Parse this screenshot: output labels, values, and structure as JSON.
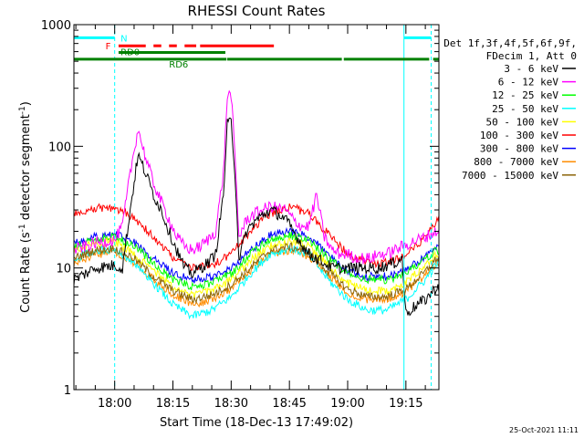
{
  "chart_data": {
    "type": "line",
    "title": "RHESSI Count Rates",
    "xlabel": "Start Time (18-Dec-13 17:49:02)",
    "ylabel_main": "Count Rate (s",
    "ylabel_sup1": "-1",
    "ylabel_mid": " detector segment",
    "ylabel_sup2": "-1",
    "ylabel_end": ")",
    "y_scale": "log",
    "ylim": [
      1,
      1000
    ],
    "xlim_min": [
      -10.5,
      83.5
    ],
    "x_ticks": [
      {
        "label": "18:00",
        "min": 0
      },
      {
        "label": "18:15",
        "min": 15
      },
      {
        "label": "18:30",
        "min": 30
      },
      {
        "label": "18:45",
        "min": 45
      },
      {
        "label": "19:00",
        "min": 60
      },
      {
        "label": "19:15",
        "min": 75
      }
    ],
    "y_ticks": [
      {
        "label": "1",
        "value": 1
      },
      {
        "label": "10",
        "value": 10
      },
      {
        "label": "100",
        "value": 100
      },
      {
        "label": "1000",
        "value": 1000
      }
    ],
    "legend_header": [
      "Det 1f,3f,4f,5f,6f,9f,",
      "FDecim 1, Att 0"
    ],
    "legend_placement": "right",
    "series": [
      {
        "name": "3 - 6 keV",
        "color": "#000000",
        "x": [
          -10.5,
          -5,
          0,
          2,
          4,
          6,
          8,
          10,
          12,
          14,
          16,
          18,
          20,
          22,
          24,
          26,
          28,
          29,
          30,
          31,
          32,
          34,
          36,
          38,
          40,
          42,
          44,
          46,
          48,
          50,
          52,
          54,
          56,
          58,
          60,
          62,
          64,
          66,
          68,
          70,
          72,
          74,
          75,
          76,
          78,
          80,
          83
        ],
        "y": [
          8,
          10,
          10.5,
          10,
          30,
          85,
          60,
          40,
          30,
          20,
          14,
          10,
          9,
          10,
          11,
          13,
          40,
          150,
          160,
          60,
          12,
          20,
          24,
          27,
          30,
          28,
          25,
          20,
          16,
          13,
          12,
          11,
          10,
          10,
          10,
          10,
          10,
          10,
          10,
          10.5,
          11,
          12,
          4.2,
          4.5,
          5,
          5.5,
          7
        ]
      },
      {
        "name": "6 - 12 keV",
        "color": "#ff00ff",
        "x": [
          -10.5,
          -5,
          0,
          2,
          4,
          6,
          8,
          10,
          12,
          14,
          16,
          18,
          20,
          22,
          24,
          26,
          28,
          29,
          30,
          31,
          32,
          34,
          36,
          38,
          40,
          42,
          44,
          46,
          48,
          50,
          52,
          54,
          56,
          58,
          60,
          62,
          64,
          66,
          68,
          70,
          72,
          74,
          76,
          78,
          80,
          83
        ],
        "y": [
          14,
          16,
          17,
          22,
          60,
          140,
          80,
          50,
          35,
          25,
          18,
          15,
          14,
          15,
          17,
          20,
          60,
          260,
          270,
          80,
          18,
          25,
          28,
          30,
          32,
          31,
          30,
          25,
          22,
          22,
          40,
          18,
          14,
          13,
          13,
          12,
          12,
          12,
          13,
          13,
          14,
          15,
          16,
          17,
          18,
          20
        ]
      },
      {
        "name": "12 - 25 keV",
        "color": "#00ff00",
        "x": [
          -10.5,
          -5,
          0,
          5,
          10,
          15,
          20,
          25,
          30,
          35,
          40,
          45,
          50,
          55,
          60,
          65,
          70,
          75,
          80,
          83
        ],
        "y": [
          15,
          17,
          18,
          15,
          11,
          8,
          7,
          7.5,
          9,
          13,
          17,
          18.5,
          17,
          12,
          9,
          8,
          8,
          9,
          12,
          14
        ]
      },
      {
        "name": "25 - 50 keV",
        "color": "#00ffff",
        "x": [
          -10.5,
          -5,
          0,
          5,
          10,
          15,
          20,
          25,
          30,
          35,
          40,
          45,
          50,
          55,
          60,
          65,
          70,
          75,
          80,
          83
        ],
        "y": [
          12,
          14,
          14,
          11,
          7.5,
          5,
          4,
          4.5,
          5.8,
          9,
          13,
          14.5,
          13,
          8,
          5.5,
          4.5,
          4.5,
          5.5,
          8,
          11
        ]
      },
      {
        "name": "50 - 100 keV",
        "color": "#ffff00",
        "x": [
          -10.5,
          -5,
          0,
          5,
          10,
          15,
          20,
          25,
          30,
          35,
          40,
          45,
          50,
          55,
          60,
          65,
          70,
          75,
          80,
          83
        ],
        "y": [
          14,
          16,
          16.5,
          13,
          9.5,
          7,
          6,
          6.5,
          8,
          11.5,
          15,
          16.5,
          15,
          10.5,
          7.5,
          6.5,
          6.5,
          7.5,
          10.5,
          13
        ]
      },
      {
        "name": "100 - 300 keV",
        "color": "#ff0000",
        "x": [
          -10.5,
          -5,
          0,
          5,
          10,
          15,
          20,
          25,
          30,
          35,
          40,
          45,
          50,
          55,
          60,
          65,
          70,
          75,
          80,
          83
        ],
        "y": [
          28,
          31,
          31,
          26,
          18,
          12,
          10,
          10.5,
          13,
          20,
          28,
          32,
          28,
          19,
          13,
          11,
          11,
          13,
          18,
          25
        ]
      },
      {
        "name": "300 - 800 keV",
        "color": "#0000ff",
        "x": [
          -10.5,
          -5,
          0,
          5,
          10,
          15,
          20,
          25,
          30,
          35,
          40,
          45,
          50,
          55,
          60,
          65,
          70,
          75,
          80,
          83
        ],
        "y": [
          16,
          18,
          19,
          16,
          12,
          9,
          8,
          8.5,
          10,
          14,
          18.5,
          20,
          18,
          13,
          9.5,
          8.5,
          8.5,
          9.5,
          12.5,
          15
        ]
      },
      {
        "name": "800 - 7000 keV",
        "color": "#ff8c00",
        "x": [
          -10.5,
          -5,
          0,
          5,
          10,
          15,
          20,
          25,
          30,
          35,
          40,
          45,
          50,
          55,
          60,
          65,
          70,
          75,
          80,
          83
        ],
        "y": [
          11,
          13,
          13.5,
          11,
          8,
          6,
          5,
          5.5,
          6.8,
          9.5,
          13,
          14,
          12.5,
          8.8,
          6.3,
          5.5,
          5.5,
          6.3,
          8.8,
          11
        ]
      },
      {
        "name": "7000 - 15000 keV",
        "color": "#8b6508",
        "x": [
          -10.5,
          -5,
          0,
          5,
          10,
          15,
          20,
          25,
          30,
          35,
          40,
          45,
          50,
          55,
          60,
          65,
          70,
          75,
          80,
          83
        ],
        "y": [
          12,
          14,
          14.5,
          12,
          8.5,
          6.5,
          5.5,
          6,
          7.3,
          10,
          14,
          15,
          13.5,
          9.3,
          6.7,
          5.8,
          5.8,
          6.7,
          9.3,
          12
        ]
      }
    ],
    "vlines": [
      {
        "min": 0,
        "color": "#00ffff",
        "dashed": true
      },
      {
        "min": 74.5,
        "color": "#00ffff",
        "dashed": false
      },
      {
        "min": 81.5,
        "color": "#00ffff",
        "dashed": true
      }
    ],
    "flag_bars": [
      {
        "label": "N",
        "color": "#00ffff",
        "value": 780,
        "spans": [
          [
            -10.5,
            0
          ],
          [
            74.5,
            81.5
          ]
        ]
      },
      {
        "label": "F",
        "color": "#ff0000",
        "value": 670,
        "spans": [
          [
            1,
            8
          ],
          [
            10,
            12
          ],
          [
            14,
            16
          ],
          [
            18,
            21
          ],
          [
            22,
            41
          ]
        ]
      },
      {
        "label": "RD0",
        "color": "#008000",
        "value": 590,
        "spans": [
          [
            1,
            28.5
          ]
        ]
      },
      {
        "label": "RD6",
        "color": "#008000",
        "value": 520,
        "spans": [
          [
            -10.5,
            28.8
          ],
          [
            29,
            58.5
          ],
          [
            59,
            81
          ],
          [
            82,
            83.5
          ]
        ]
      }
    ]
  },
  "footer": {
    "timestamp": "25-Oct-2021 11:11"
  }
}
